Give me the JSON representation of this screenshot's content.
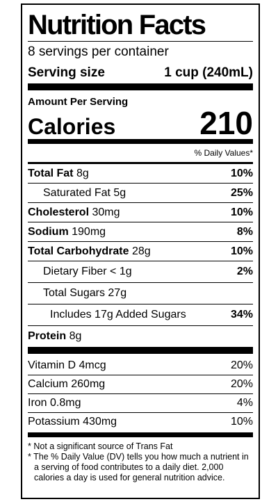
{
  "title": "Nutrition Facts",
  "servings": "8 servings per container",
  "serving_size": {
    "label": "Serving size",
    "value": "1 cup (240mL)"
  },
  "amount_per_serving": "Amount Per Serving",
  "calories": {
    "label": "Calories",
    "value": "210"
  },
  "dv_header": "% Daily Values*",
  "nutrients": [
    {
      "name": "Total Fat",
      "amount": "8g",
      "dv": "10%"
    },
    {
      "name": "Saturated Fat",
      "amount": "5g",
      "dv": "25%"
    },
    {
      "name": "Cholesterol",
      "amount": "30mg",
      "dv": "10%"
    },
    {
      "name": "Sodium",
      "amount": "190mg",
      "dv": "8%"
    },
    {
      "name": "Total Carbohydrate",
      "amount": "28g",
      "dv": "10%"
    },
    {
      "name": "Dietary Fiber",
      "amount": "< 1g",
      "dv": "2%"
    },
    {
      "name": "Total Sugars",
      "amount": "27g"
    },
    {
      "name": "Includes 17g Added Sugars",
      "dv": "34%"
    },
    {
      "name": "Protein",
      "amount": "8g"
    }
  ],
  "vitamins": [
    {
      "name": "Vitamin D",
      "amount": "4mcg",
      "dv": "20%"
    },
    {
      "name": "Calcium",
      "amount": "260mg",
      "dv": "20%"
    },
    {
      "name": "Iron",
      "amount": "0.8mg",
      "dv": "4%"
    },
    {
      "name": "Potassium",
      "amount": "430mg",
      "dv": "10%"
    }
  ],
  "footnotes": [
    "* Not a significant source of Trans Fat",
    "* The % Daily Value (DV) tells you how much a nutrient in a serving of food contributes to a daily diet. 2,000 calories a day is used for general nutrition advice."
  ]
}
